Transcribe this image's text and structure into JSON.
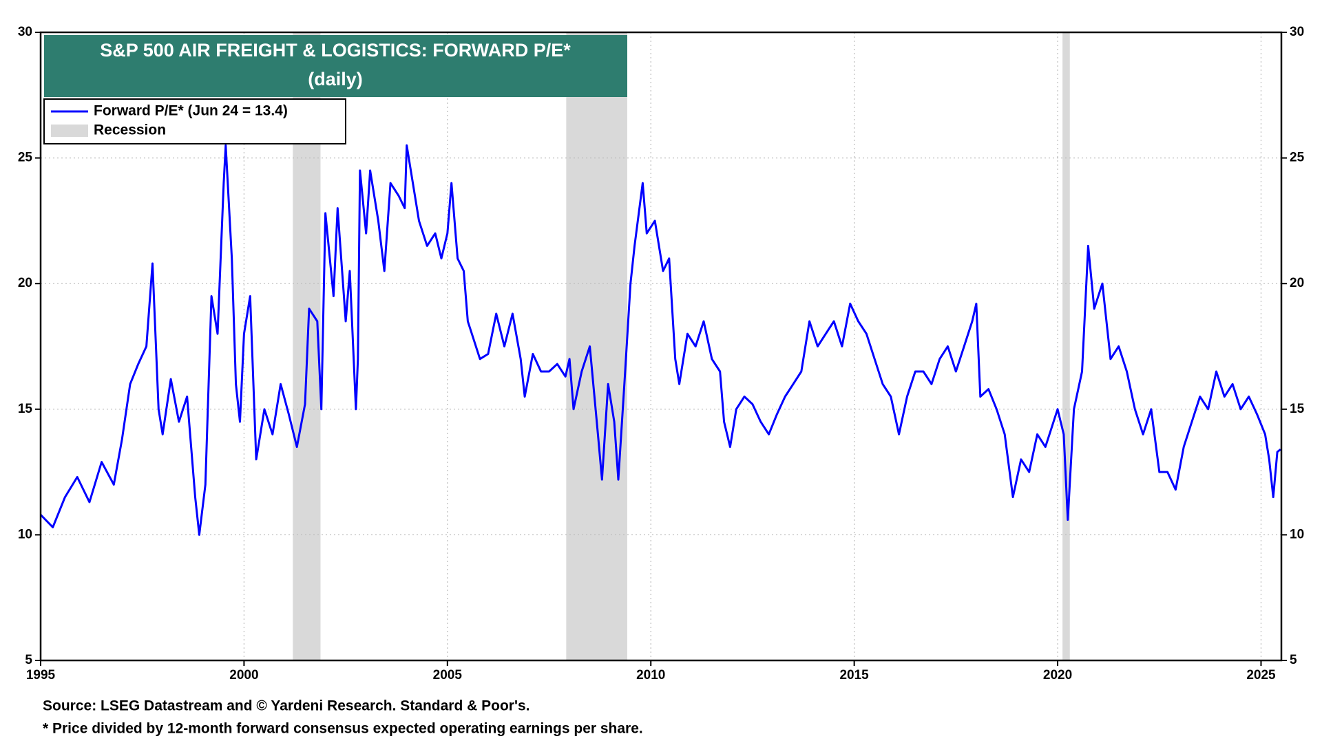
{
  "chart_data": {
    "type": "line",
    "title": "S&P 500 AIR FREIGHT & LOGISTICS: FORWARD P/E*",
    "subtitle": "(daily)",
    "source": "Source: LSEG Datastream and © Yardeni Research. Standard & Poor's.",
    "footnote": "* Price divided by 12-month forward consensus expected operating earnings per share.",
    "xlim": [
      1995,
      2025.5
    ],
    "xticks": [
      1995,
      2000,
      2005,
      2010,
      2015,
      2020,
      2025
    ],
    "ylim": [
      5,
      30
    ],
    "yticks": [
      5,
      10,
      15,
      20,
      25,
      30
    ],
    "grid": true,
    "recessions": {
      "name": "Recession",
      "color": "#d9d9d9",
      "spans": [
        [
          2001.2,
          2001.88
        ],
        [
          2007.92,
          2009.42
        ],
        [
          2020.12,
          2020.3
        ]
      ]
    },
    "x": [
      1995.0,
      1995.3,
      1995.6,
      1995.9,
      1996.2,
      1996.5,
      1996.8,
      1997.0,
      1997.2,
      1997.4,
      1997.6,
      1997.75,
      1997.9,
      1998.0,
      1998.2,
      1998.4,
      1998.6,
      1998.8,
      1998.9,
      1999.05,
      1999.2,
      1999.35,
      1999.5,
      1999.55,
      1999.7,
      1999.8,
      1999.9,
      2000.0,
      2000.15,
      2000.3,
      2000.5,
      2000.7,
      2000.9,
      2001.1,
      2001.3,
      2001.5,
      2001.6,
      2001.8,
      2001.9,
      2002.0,
      2002.2,
      2002.3,
      2002.5,
      2002.6,
      2002.75,
      2002.8,
      2002.85,
      2003.0,
      2003.1,
      2003.3,
      2003.45,
      2003.6,
      2003.8,
      2003.95,
      2004.0,
      2004.15,
      2004.3,
      2004.5,
      2004.7,
      2004.85,
      2005.0,
      2005.1,
      2005.25,
      2005.4,
      2005.5,
      2005.6,
      2005.8,
      2006.0,
      2006.2,
      2006.4,
      2006.6,
      2006.8,
      2006.9,
      2007.1,
      2007.3,
      2007.5,
      2007.7,
      2007.9,
      2008.0,
      2008.1,
      2008.3,
      2008.5,
      2008.7,
      2008.8,
      2008.95,
      2009.1,
      2009.2,
      2009.35,
      2009.5,
      2009.6,
      2009.8,
      2009.9,
      2010.1,
      2010.3,
      2010.45,
      2010.6,
      2010.7,
      2010.9,
      2011.1,
      2011.3,
      2011.5,
      2011.7,
      2011.8,
      2011.95,
      2012.1,
      2012.3,
      2012.5,
      2012.7,
      2012.9,
      2013.1,
      2013.3,
      2013.5,
      2013.7,
      2013.9,
      2014.1,
      2014.3,
      2014.5,
      2014.7,
      2014.9,
      2015.1,
      2015.3,
      2015.5,
      2015.7,
      2015.9,
      2016.1,
      2016.3,
      2016.5,
      2016.7,
      2016.9,
      2017.1,
      2017.3,
      2017.5,
      2017.7,
      2017.9,
      2018.0,
      2018.1,
      2018.3,
      2018.5,
      2018.7,
      2018.9,
      2019.1,
      2019.3,
      2019.5,
      2019.7,
      2019.9,
      2020.0,
      2020.15,
      2020.25,
      2020.4,
      2020.6,
      2020.75,
      2020.9,
      2021.1,
      2021.3,
      2021.5,
      2021.7,
      2021.9,
      2022.1,
      2022.3,
      2022.5,
      2022.7,
      2022.9,
      2023.1,
      2023.3,
      2023.5,
      2023.7,
      2023.9,
      2024.1,
      2024.3,
      2024.5,
      2024.7,
      2024.9,
      2025.1,
      2025.2,
      2025.3,
      2025.4,
      2025.48
    ],
    "series": [
      {
        "name": "Forward P/E* (Jun 24 = 13.4)",
        "color": "#0000ff",
        "values": [
          10.8,
          10.3,
          11.5,
          12.3,
          11.3,
          12.9,
          12.0,
          13.8,
          16.0,
          16.8,
          17.5,
          20.8,
          15.0,
          14.0,
          16.2,
          14.5,
          15.5,
          11.5,
          10.0,
          12.0,
          19.5,
          18.0,
          24.0,
          25.5,
          21.0,
          16.0,
          14.5,
          18.0,
          19.5,
          13.0,
          15.0,
          14.0,
          16.0,
          14.8,
          13.5,
          15.2,
          19.0,
          18.5,
          15.0,
          22.8,
          19.5,
          23.0,
          18.5,
          20.5,
          15.0,
          17.0,
          24.5,
          22.0,
          24.5,
          22.5,
          20.5,
          24.0,
          23.5,
          23.0,
          25.5,
          24.0,
          22.5,
          21.5,
          22.0,
          21.0,
          22.0,
          24.0,
          21.0,
          20.5,
          18.5,
          18.0,
          17.0,
          17.2,
          18.8,
          17.5,
          18.8,
          17.0,
          15.5,
          17.2,
          16.5,
          16.5,
          16.8,
          16.3,
          17.0,
          15.0,
          16.5,
          17.5,
          14.0,
          12.2,
          16.0,
          14.5,
          12.2,
          16.0,
          20.0,
          21.5,
          24.0,
          22.0,
          22.5,
          20.5,
          21.0,
          17.0,
          16.0,
          18.0,
          17.5,
          18.5,
          17.0,
          16.5,
          14.5,
          13.5,
          15.0,
          15.5,
          15.2,
          14.5,
          14.0,
          14.8,
          15.5,
          16.0,
          16.5,
          18.5,
          17.5,
          18.0,
          18.5,
          17.5,
          19.2,
          18.5,
          18.0,
          17.0,
          16.0,
          15.5,
          14.0,
          15.5,
          16.5,
          16.5,
          16.0,
          17.0,
          17.5,
          16.5,
          17.5,
          18.5,
          19.2,
          15.5,
          15.8,
          15.0,
          14.0,
          11.5,
          13.0,
          12.5,
          14.0,
          13.5,
          14.5,
          15.0,
          14.0,
          10.6,
          15.0,
          16.5,
          21.5,
          19.0,
          20.0,
          17.0,
          17.5,
          16.5,
          15.0,
          14.0,
          15.0,
          12.5,
          12.5,
          11.8,
          13.5,
          14.5,
          15.5,
          15.0,
          16.5,
          15.5,
          16.0,
          15.0,
          15.5,
          14.8,
          14.0,
          13.0,
          11.5,
          13.3,
          13.4
        ]
      }
    ]
  }
}
